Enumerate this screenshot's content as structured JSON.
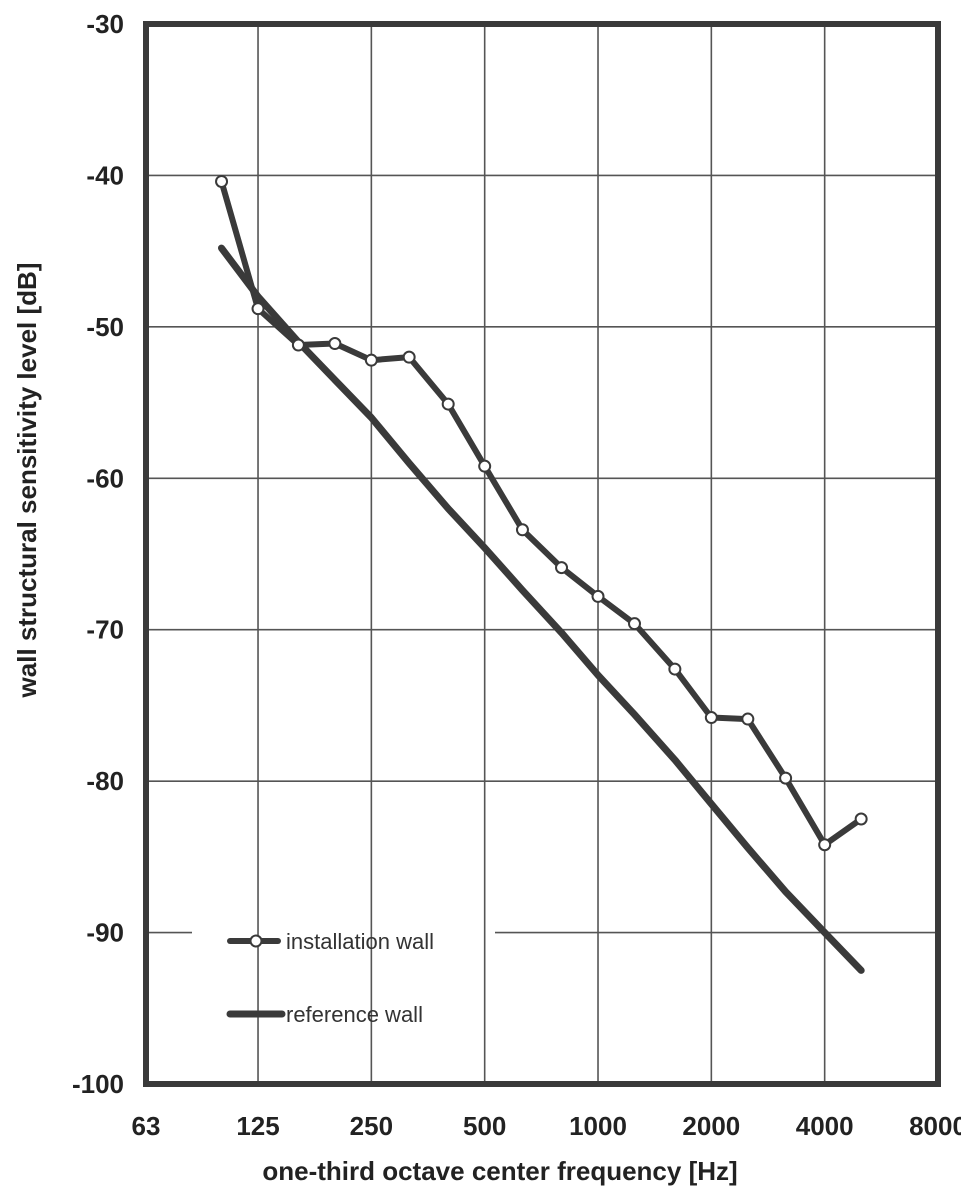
{
  "chart_data": {
    "type": "line",
    "xlabel": "one-third octave center frequency  [Hz]",
    "ylabel": "wall structural sensitivity level  [dB]",
    "x_scale": "log",
    "x_ticks": [
      63,
      125,
      250,
      500,
      1000,
      2000,
      4000,
      8000
    ],
    "x_tick_labels": [
      "63",
      "125",
      "250",
      "500",
      "1000",
      "2000",
      "4000",
      "8000"
    ],
    "xlim": [
      63,
      8000
    ],
    "y_ticks": [
      -30,
      -40,
      -50,
      -60,
      -70,
      -80,
      -90,
      -100
    ],
    "y_tick_labels": [
      "-30",
      "-40",
      "-50",
      "-60",
      "-70",
      "-80",
      "-90",
      "-100"
    ],
    "ylim": [
      -100,
      -30
    ],
    "grid": true,
    "legend_position": "bottom-left",
    "series": [
      {
        "name": "installation wall",
        "marker": "circle",
        "color": "#3a3a3a",
        "x": [
          100,
          125,
          160,
          200,
          250,
          315,
          400,
          500,
          630,
          800,
          1000,
          1250,
          1600,
          2000,
          2500,
          3150,
          4000,
          5000
        ],
        "y": [
          -40.4,
          -48.8,
          -51.2,
          -51.1,
          -52.2,
          -52.0,
          -55.1,
          -59.2,
          -63.4,
          -65.9,
          -67.8,
          -69.6,
          -72.6,
          -75.8,
          -75.9,
          -79.8,
          -84.2,
          -82.5
        ]
      },
      {
        "name": "reference wall",
        "marker": "none",
        "color": "#3a3a3a",
        "x": [
          100,
          125,
          160,
          200,
          250,
          315,
          400,
          500,
          630,
          800,
          1000,
          1250,
          1600,
          2000,
          2500,
          3150,
          4000,
          5000
        ],
        "y": [
          -44.8,
          -48.0,
          -51.0,
          -53.5,
          -56.0,
          -59.0,
          -62.0,
          -64.6,
          -67.4,
          -70.2,
          -73.0,
          -75.6,
          -78.6,
          -81.5,
          -84.4,
          -87.3,
          -90.0,
          -92.5
        ]
      }
    ]
  }
}
